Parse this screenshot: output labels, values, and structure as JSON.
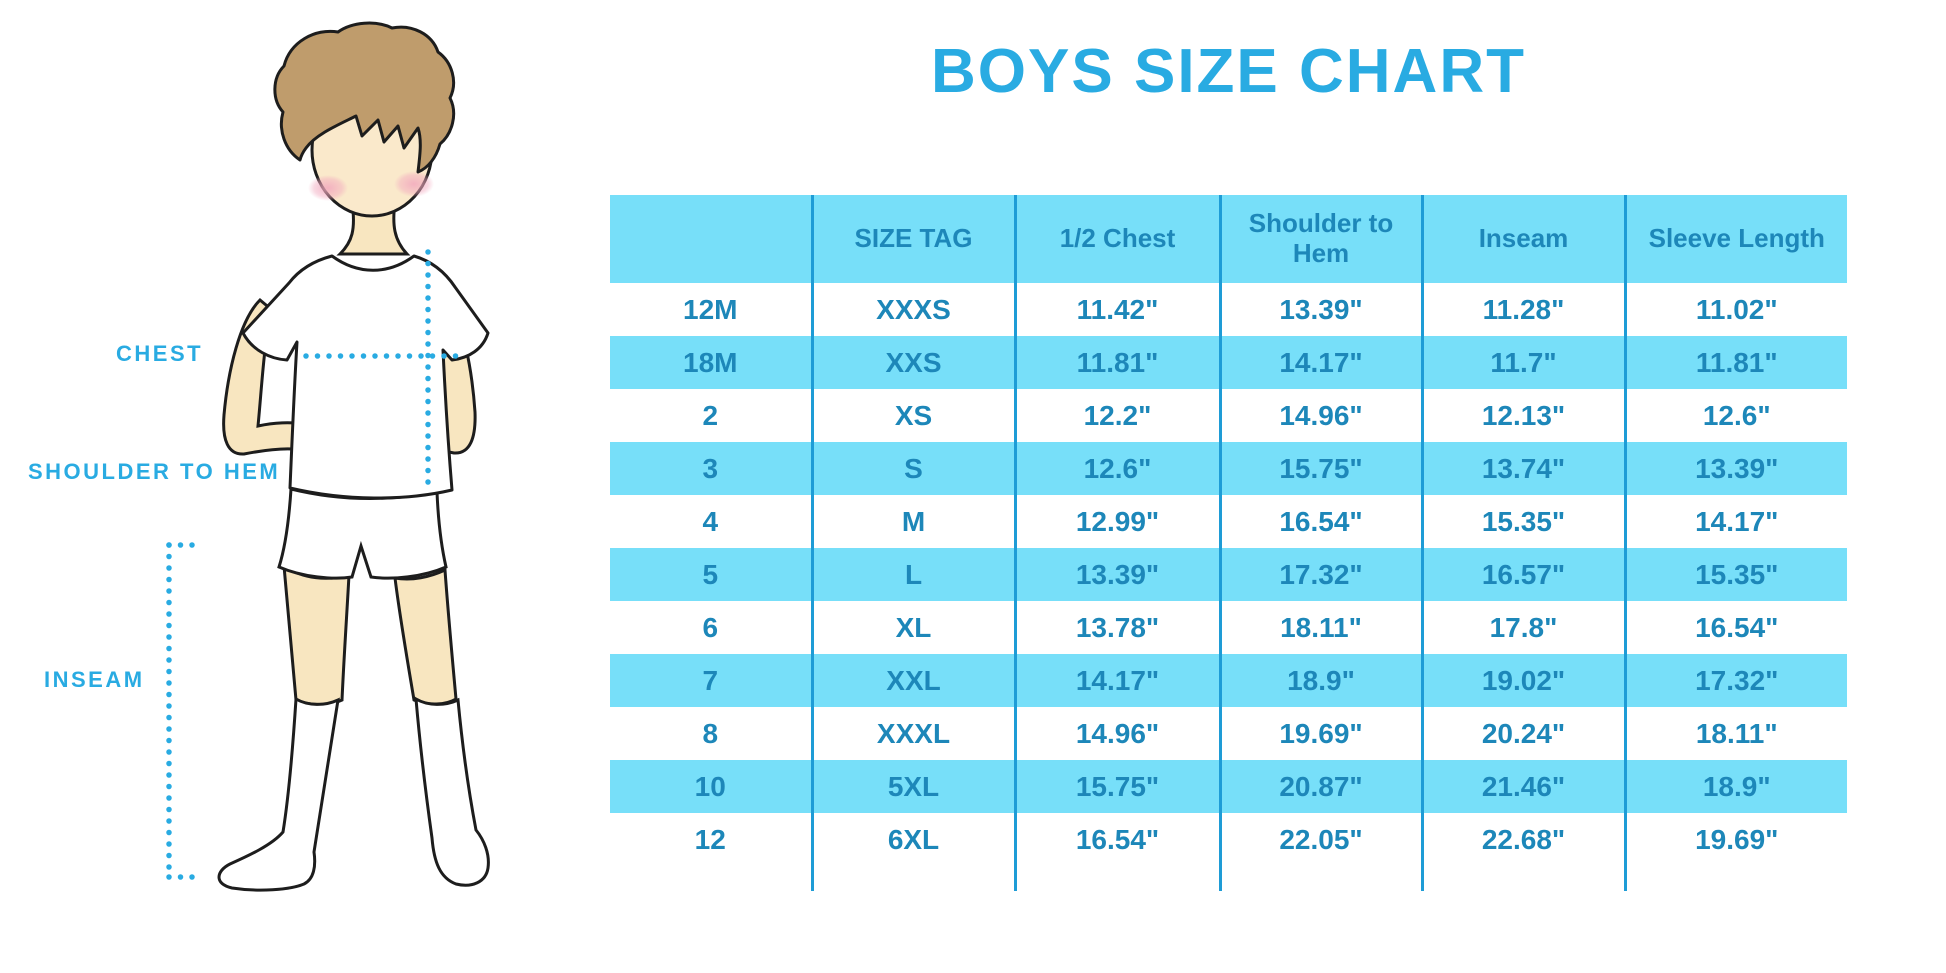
{
  "title": "BOYS SIZE CHART",
  "figure_labels": {
    "chest": "CHEST",
    "shoulder_to_hem": "SHOULDER TO HEM",
    "inseam": "INSEAM"
  },
  "colors": {
    "accent_blue": "#29ABE2",
    "row_band_blue": "#77DFF9",
    "table_text_blue": "#1D87B9",
    "grid_line_blue": "#1E9CD6",
    "skin": "#F8E6C0",
    "hair_brown": "#BF9C6C",
    "blush_pink": "#F5AEC3"
  },
  "chart_data": {
    "type": "table",
    "title": "BOYS SIZE CHART",
    "units": "inches",
    "legend_position": "none",
    "row_banding": "alternating white and light blue",
    "columns": [
      "",
      "SIZE TAG",
      "1/2 Chest",
      "Shoulder to Hem",
      "Inseam",
      "Sleeve Length"
    ],
    "rows": [
      [
        "12M",
        "XXXS",
        "11.42\"",
        "13.39\"",
        "11.28\"",
        "11.02\""
      ],
      [
        "18M",
        "XXS",
        "11.81\"",
        "14.17\"",
        "11.7\"",
        "11.81\""
      ],
      [
        "2",
        "XS",
        "12.2\"",
        "14.96\"",
        "12.13\"",
        "12.6\""
      ],
      [
        "3",
        "S",
        "12.6\"",
        "15.75\"",
        "13.74\"",
        "13.39\""
      ],
      [
        "4",
        "M",
        "12.99\"",
        "16.54\"",
        "15.35\"",
        "14.17\""
      ],
      [
        "5",
        "L",
        "13.39\"",
        "17.32\"",
        "16.57\"",
        "15.35\""
      ],
      [
        "6",
        "XL",
        "13.78\"",
        "18.11\"",
        "17.8\"",
        "16.54\""
      ],
      [
        "7",
        "XXL",
        "14.17\"",
        "18.9\"",
        "19.02\"",
        "17.32\""
      ],
      [
        "8",
        "XXXL",
        "14.96\"",
        "19.69\"",
        "20.24\"",
        "18.11\""
      ],
      [
        "10",
        "5XL",
        "15.75\"",
        "20.87\"",
        "21.46\"",
        "18.9\""
      ],
      [
        "12",
        "6XL",
        "16.54\"",
        "22.05\"",
        "22.68\"",
        "19.69\""
      ]
    ]
  }
}
